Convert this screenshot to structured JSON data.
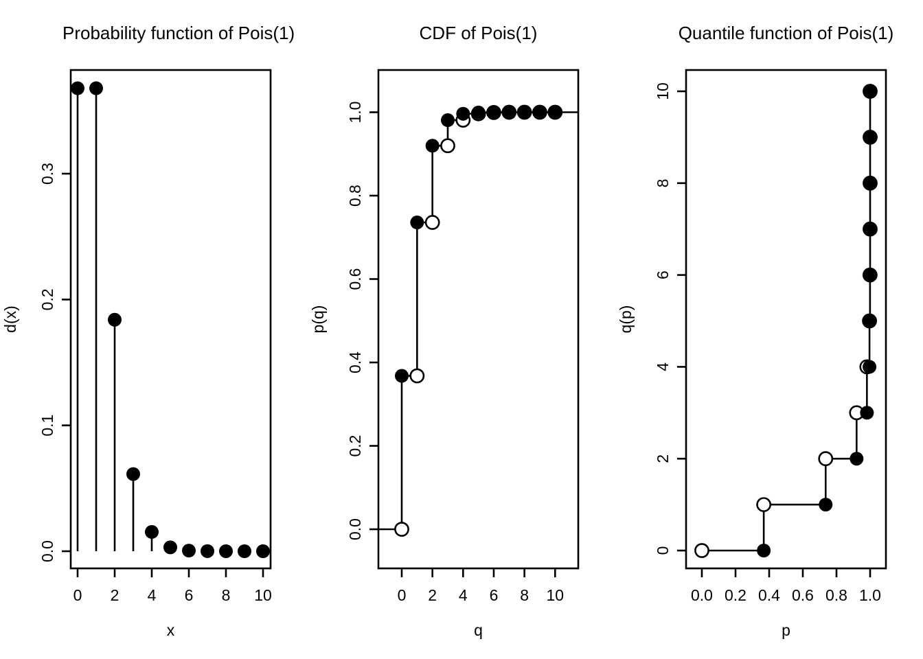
{
  "figure": {
    "background": "#ffffff",
    "foreground": "#000000",
    "marker_fill": "#000000",
    "open_marker_fill": "#ffffff",
    "description": "Three base-R plots of the Poisson(1) distribution: probability mass function, cumulative distribution function, quantile function"
  },
  "chart_data": [
    {
      "type": "stem",
      "title": "Probability function of Pois(1)",
      "xlabel": "x",
      "ylabel": "d(x)",
      "x": [
        0,
        1,
        2,
        3,
        4,
        5,
        6,
        7,
        8,
        9,
        10
      ],
      "y": [
        0.367879,
        0.367879,
        0.18394,
        0.061313,
        0.015328,
        0.003066,
        0.000511,
        7.3e-05,
        9e-06,
        1e-06,
        1e-07
      ],
      "xlim": [
        -0.4,
        10.4
      ],
      "ylim": [
        -0.015,
        0.383
      ],
      "grid": false,
      "legend": "none",
      "marker": "filled-circle",
      "xticks": {
        "values": [
          0,
          2,
          4,
          6,
          8,
          10
        ],
        "labels": [
          "0",
          "2",
          "4",
          "6",
          "8",
          "10"
        ]
      },
      "yticks": {
        "values": [
          0,
          0.1,
          0.2,
          0.3
        ],
        "labels": [
          "0.0",
          "0.1",
          "0.2",
          "0.3"
        ]
      }
    },
    {
      "type": "step-cdf",
      "title": "CDF of Pois(1)",
      "xlabel": "q",
      "ylabel": "p(q)",
      "x": [
        0,
        1,
        2,
        3,
        4,
        5,
        6,
        7,
        8,
        9,
        10
      ],
      "y": [
        0.367879,
        0.735759,
        0.919699,
        0.981012,
        0.99634,
        0.999406,
        0.999917,
        0.99999,
        0.999999,
        1.0,
        1.0
      ],
      "pre_level": 0,
      "extend_left": true,
      "extend_right": true,
      "xlim": [
        -1.48,
        11.48
      ],
      "ylim": [
        -0.096,
        1.1
      ],
      "grid": false,
      "legend": "none",
      "value_marker": "filled-circle",
      "limit_marker": "open-circle",
      "xticks": {
        "values": [
          0,
          2,
          4,
          6,
          8,
          10
        ],
        "labels": [
          "0",
          "2",
          "4",
          "6",
          "8",
          "10"
        ]
      },
      "yticks": {
        "values": [
          0,
          0.2,
          0.4,
          0.6,
          0.8,
          1.0
        ],
        "labels": [
          "0.0",
          "0.2",
          "0.4",
          "0.6",
          "0.8",
          "1.0"
        ]
      }
    },
    {
      "type": "step-quantile",
      "title": "Quantile function of Pois(1)",
      "xlabel": "p",
      "ylabel": "q(p)",
      "p_start": 0,
      "p": [
        0.367879,
        0.735759,
        0.919699,
        0.981012,
        0.99634,
        0.999406,
        0.999917,
        0.99999,
        0.999999,
        0.9999999,
        1.0
      ],
      "q": [
        0,
        1,
        2,
        3,
        4,
        5,
        6,
        7,
        8,
        9,
        10
      ],
      "xlim": [
        -0.09,
        1.09
      ],
      "ylim": [
        -0.45,
        10.5
      ],
      "grid": false,
      "legend": "none",
      "value_marker": "filled-circle",
      "limit_marker": "open-circle",
      "xticks": {
        "values": [
          0,
          0.2,
          0.4,
          0.6,
          0.8,
          1.0
        ],
        "labels": [
          "0.0",
          "0.2",
          "0.4",
          "0.6",
          "0.8",
          "1.0"
        ]
      },
      "yticks": {
        "values": [
          0,
          2,
          4,
          6,
          8,
          10
        ],
        "labels": [
          "0",
          "2",
          "4",
          "6",
          "8",
          "10"
        ]
      }
    }
  ]
}
